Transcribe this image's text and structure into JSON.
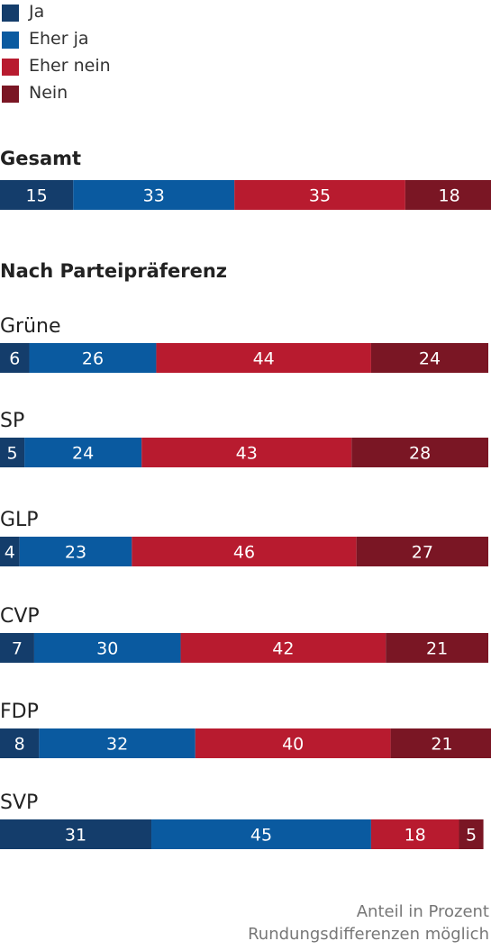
{
  "chart_data": {
    "type": "bar",
    "orientation": "horizontal",
    "stacked": true,
    "series": [
      {
        "name": "Ja",
        "color": "#143d6b"
      },
      {
        "name": "Eher ja",
        "color": "#0a5aa0"
      },
      {
        "name": "Eher nein",
        "color": "#b81b2f"
      },
      {
        "name": "Nein",
        "color": "#7a1624"
      }
    ],
    "sections": [
      {
        "title": "Gesamt",
        "groups": [
          {
            "label": "",
            "values": [
              15,
              33,
              35,
              18
            ]
          }
        ]
      },
      {
        "title": "Nach Parteipräferenz",
        "groups": [
          {
            "label": "Grüne",
            "values": [
              6,
              26,
              44,
              24
            ]
          },
          {
            "label": "SP",
            "values": [
              5,
              24,
              43,
              28
            ]
          },
          {
            "label": "GLP",
            "values": [
              4,
              23,
              46,
              27
            ]
          },
          {
            "label": "CVP",
            "values": [
              7,
              30,
              42,
              21
            ]
          },
          {
            "label": "FDP",
            "values": [
              8,
              32,
              40,
              21
            ]
          },
          {
            "label": "SVP",
            "values": [
              31,
              45,
              18,
              5
            ]
          }
        ]
      }
    ],
    "xlim": [
      0,
      100
    ],
    "grid": false,
    "legend_position": "top-left"
  },
  "footnotes": [
    "Anteil in Prozent",
    "Rundungsdifferenzen möglich"
  ]
}
